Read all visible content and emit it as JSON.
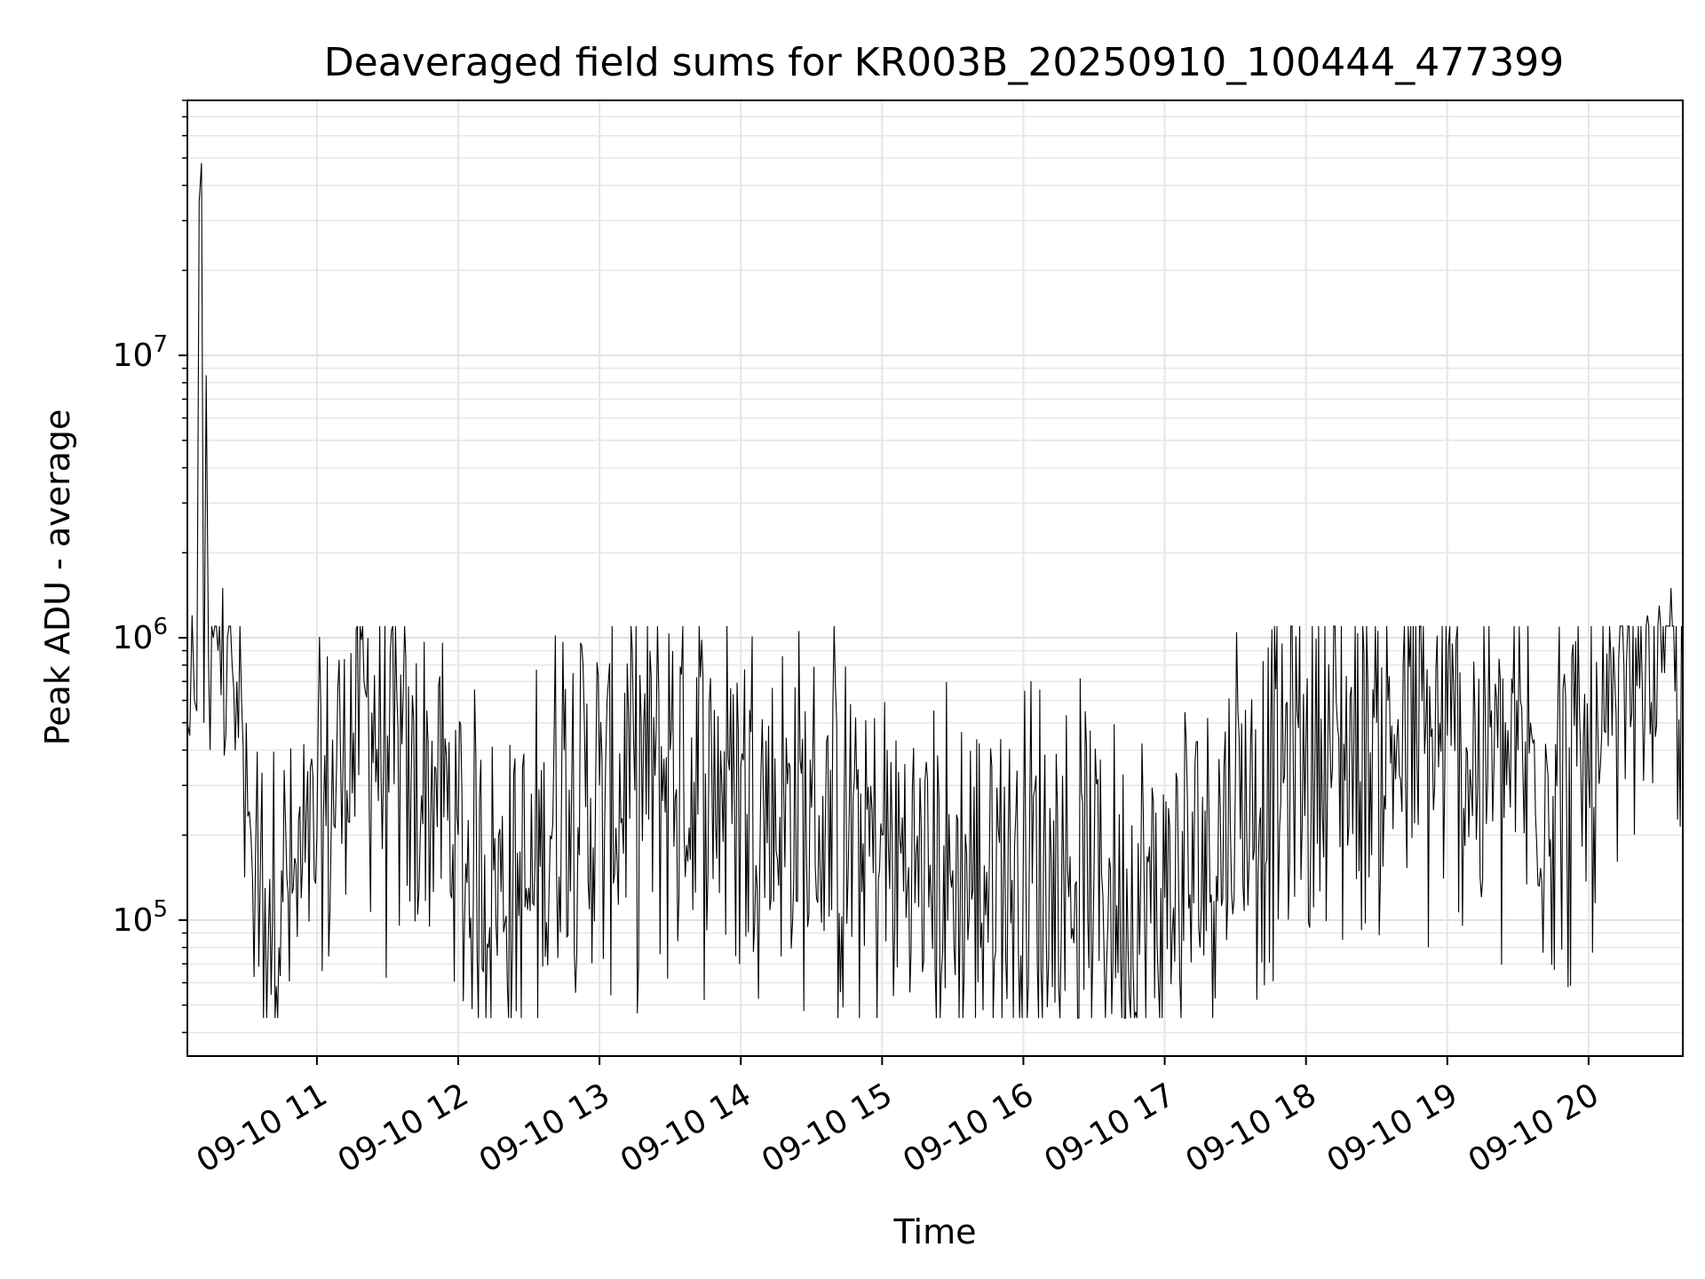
{
  "chart_data": {
    "type": "line",
    "title": "Deaveraged field sums for KR003B_20250910_100444_477399",
    "xlabel": "Time",
    "ylabel": "Peak ADU - average",
    "xscale": "time",
    "yscale": "log",
    "xlim": [
      "2025-09-10 10:05",
      "2025-09-10 20:40"
    ],
    "ylim": [
      33000,
      80000000
    ],
    "grid": true,
    "line_color": "#000000",
    "x_ticks": [
      "09-10 11",
      "09-10 12",
      "09-10 13",
      "09-10 14",
      "09-10 15",
      "09-10 16",
      "09-10 17",
      "09-10 18",
      "09-10 19",
      "09-10 20"
    ],
    "y_ticks": [
      {
        "base": "10",
        "exp": "5",
        "value": 100000
      },
      {
        "base": "10",
        "exp": "6",
        "value": 1000000
      },
      {
        "base": "10",
        "exp": "7",
        "value": 10000000
      }
    ],
    "series": [
      {
        "values_note_omitted": false,
        "x": [
          "2025-09-10 10:05",
          "2025-09-10 10:06",
          "2025-09-10 10:07",
          "2025-09-10 10:08",
          "2025-09-10 10:09",
          "2025-09-10 10:10",
          "2025-09-10 10:11",
          "2025-09-10 10:12",
          "2025-09-10 10:13",
          "2025-09-10 10:14",
          "2025-09-10 10:16",
          "2025-09-10 10:18",
          "2025-09-10 10:20",
          "2025-09-10 10:22",
          "2025-09-10 10:24",
          "2025-09-10 10:26",
          "2025-09-10 10:28",
          "2025-09-10 10:30",
          "2025-09-10 10:32",
          "2025-09-10 10:34",
          "2025-09-10 10:36",
          "2025-09-10 10:38",
          "2025-09-10 10:40",
          "2025-09-10 10:45",
          "2025-09-10 10:50",
          "2025-09-10 10:55",
          "2025-09-10 11:00",
          "2025-09-10 11:10",
          "2025-09-10 11:20",
          "2025-09-10 11:30",
          "2025-09-10 11:40",
          "2025-09-10 11:50",
          "2025-09-10 12:00",
          "2025-09-10 12:15",
          "2025-09-10 12:30",
          "2025-09-10 12:45",
          "2025-09-10 13:00",
          "2025-09-10 13:30",
          "2025-09-10 14:00",
          "2025-09-10 14:30",
          "2025-09-10 15:00",
          "2025-09-10 15:30",
          "2025-09-10 16:00",
          "2025-09-10 16:30",
          "2025-09-10 17:00",
          "2025-09-10 17:30",
          "2025-09-10 18:00",
          "2025-09-10 18:30",
          "2025-09-10 19:00",
          "2025-09-10 19:30",
          "2025-09-10 19:55",
          "2025-09-10 20:05",
          "2025-09-10 20:10",
          "2025-09-10 20:15",
          "2025-09-10 20:20",
          "2025-09-10 20:25",
          "2025-09-10 20:30",
          "2025-09-10 20:35",
          "2025-09-10 20:40"
        ],
        "y": [
          500000,
          450000,
          1200000,
          600000,
          550000,
          35000000,
          48000000,
          500000,
          8500000,
          800000,
          1000000,
          900000,
          1500000,
          1000000,
          800000,
          700000,
          600000,
          500000,
          200000,
          180000,
          150000,
          130000,
          140000,
          150000,
          130000,
          160000,
          200000,
          400000,
          700000,
          450000,
          300000,
          350000,
          200000,
          150000,
          130000,
          400000,
          300000,
          400000,
          350000,
          250000,
          200000,
          150000,
          180000,
          150000,
          120000,
          300000,
          450000,
          500000,
          450000,
          400000,
          350000,
          350000,
          450000,
          800000,
          1000000,
          1200000,
          1300000,
          1500000,
          800000
        ]
      }
    ]
  }
}
